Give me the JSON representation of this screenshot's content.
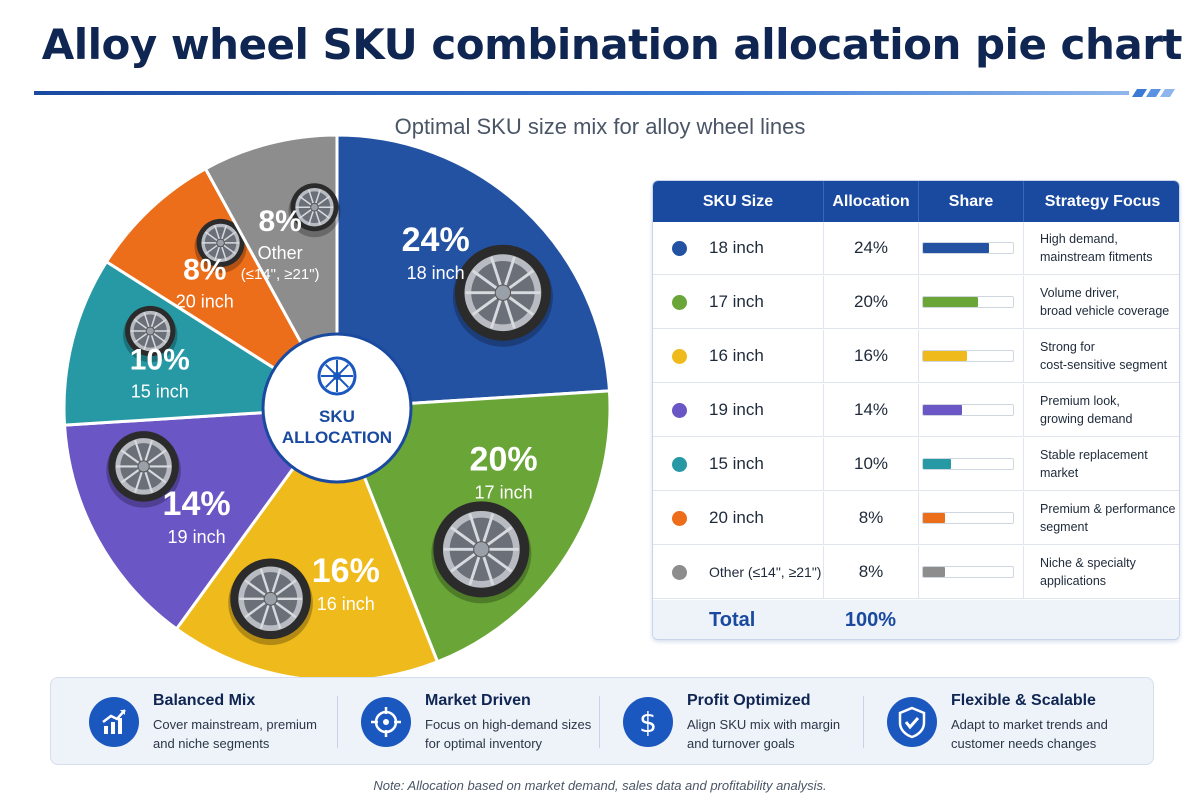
{
  "title": "Alloy wheel SKU combination allocation pie chart",
  "subtitle": "Optimal SKU size mix for alloy wheel lines",
  "center_label": {
    "line1": "SKU",
    "line2": "ALLOCATION"
  },
  "chart_data": {
    "type": "pie",
    "title": "Alloy wheel SKU combination allocation pie chart",
    "subtitle": "Optimal SKU size mix for alloy wheel lines",
    "slices": [
      {
        "label": "18 inch",
        "value": 24,
        "display": "24%",
        "color": "#2452a3"
      },
      {
        "label": "17 inch",
        "value": 20,
        "display": "20%",
        "color": "#6aa637"
      },
      {
        "label": "16 inch",
        "value": 16,
        "display": "16%",
        "color": "#efba1b"
      },
      {
        "label": "19 inch",
        "value": 14,
        "display": "14%",
        "color": "#6a56c4"
      },
      {
        "label": "15 inch",
        "value": 10,
        "display": "10%",
        "color": "#2699a5"
      },
      {
        "label": "20 inch",
        "value": 8,
        "display": "8%",
        "color": "#ec6d1a"
      },
      {
        "label": "Other",
        "sublabel": "(≤14\", ≥21\")",
        "value": 8,
        "display": "8%",
        "color": "#8d8d8d"
      }
    ]
  },
  "table": {
    "headers": [
      "SKU Size",
      "Allocation",
      "Share",
      "Strategy Focus"
    ],
    "rows": [
      {
        "size": "18 inch",
        "allocation": "24%",
        "share": 0.24,
        "color": "#2452a3",
        "focus": "High demand,\nmainstream fitments"
      },
      {
        "size": "17 inch",
        "allocation": "20%",
        "share": 0.2,
        "color": "#6aa637",
        "focus": "Volume driver,\nbroad vehicle coverage"
      },
      {
        "size": "16 inch",
        "allocation": "16%",
        "share": 0.16,
        "color": "#efba1b",
        "focus": "Strong for\ncost-sensitive segment"
      },
      {
        "size": "19 inch",
        "allocation": "14%",
        "share": 0.14,
        "color": "#6a56c4",
        "focus": "Premium look,\ngrowing demand"
      },
      {
        "size": "15 inch",
        "allocation": "10%",
        "share": 0.1,
        "color": "#2699a5",
        "focus": "Stable replacement\nmarket"
      },
      {
        "size": "20 inch",
        "allocation": "8%",
        "share": 0.08,
        "color": "#ec6d1a",
        "focus": "Premium & performance\nsegment"
      },
      {
        "size": "Other (≤14\", ≥21\")",
        "allocation": "8%",
        "share": 0.08,
        "color": "#8d8d8d",
        "focus": "Niche & specialty\napplications"
      }
    ],
    "total_label": "Total",
    "total_value": "100%"
  },
  "features": [
    {
      "icon": "growth-chart-icon",
      "title": "Balanced Mix",
      "desc": "Cover mainstream, premium\nand niche segments"
    },
    {
      "icon": "target-icon",
      "title": "Market Driven",
      "desc": "Focus on high-demand sizes\nfor optimal inventory"
    },
    {
      "icon": "dollar-icon",
      "title": "Profit Optimized",
      "desc": "Align SKU mix with margin\nand turnover goals"
    },
    {
      "icon": "shield-check-icon",
      "title": "Flexible & Scalable",
      "desc": "Adapt to market trends and\ncustomer needs changes"
    }
  ],
  "note": "Note: Allocation based on market demand, sales data and profitability analysis."
}
